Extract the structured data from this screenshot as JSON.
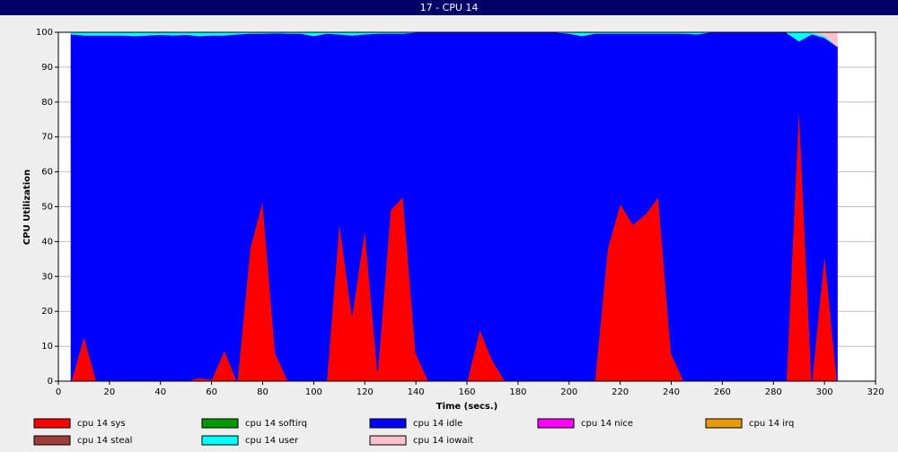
{
  "chart_data": {
    "type": "stacked_area",
    "title": "17 - CPU 14",
    "x_label": "Time (secs.)",
    "y_label": "CPU Utilization",
    "x": [
      5,
      10,
      15,
      20,
      25,
      30,
      35,
      40,
      45,
      50,
      55,
      60,
      65,
      70,
      75,
      80,
      85,
      90,
      95,
      100,
      105,
      110,
      115,
      120,
      125,
      130,
      135,
      140,
      145,
      150,
      155,
      160,
      165,
      170,
      175,
      180,
      185,
      190,
      195,
      200,
      205,
      210,
      215,
      220,
      225,
      230,
      235,
      240,
      245,
      250,
      255,
      260,
      265,
      270,
      275,
      280,
      285,
      290,
      295,
      300,
      305
    ],
    "series": [
      {
        "name": "cpu 14 sys",
        "color": "#ff0000",
        "values": [
          0,
          13,
          0,
          0,
          0,
          0,
          0,
          0,
          0,
          0,
          1,
          0.5,
          9,
          0,
          38,
          52,
          8,
          0,
          0,
          0,
          0,
          46,
          19,
          44,
          3,
          49,
          53,
          8,
          0,
          0,
          0,
          0,
          15,
          6,
          0,
          0,
          0,
          0,
          0,
          0,
          0,
          0,
          38,
          51,
          45,
          48,
          53,
          8,
          0,
          0,
          0,
          0,
          0,
          0,
          0,
          0,
          0,
          80,
          0,
          37,
          0
        ]
      },
      {
        "name": "cpu 14 softirq",
        "color": "#009900",
        "values": [
          0,
          0,
          0,
          0,
          0,
          0,
          0,
          0,
          0,
          0,
          0,
          0,
          0,
          0,
          0,
          0,
          0,
          0,
          0,
          0,
          0,
          0,
          0,
          0,
          0,
          0,
          0,
          0,
          0,
          0,
          0,
          0,
          0,
          0,
          0,
          0,
          0,
          0,
          0,
          0,
          0,
          0,
          0,
          0,
          0,
          0,
          0,
          0,
          0,
          0,
          0,
          0,
          0,
          0,
          0,
          0,
          0,
          0,
          0,
          0,
          0
        ]
      },
      {
        "name": "cpu 14 idle",
        "color": "#0000ff",
        "values": [
          99.5,
          86.2,
          99.2,
          99.2,
          99.2,
          99,
          99.2,
          99.4,
          99.2,
          99.4,
          98,
          98.7,
          90.2,
          99.5,
          61.7,
          47.7,
          91.8,
          99.7,
          99.7,
          99,
          99.7,
          53.5,
          80.2,
          55.5,
          96.7,
          50.7,
          46.7,
          92,
          100,
          100,
          100,
          100,
          85,
          94,
          100,
          100,
          100,
          100,
          100,
          99.7,
          99,
          99.7,
          61.7,
          48.7,
          54.7,
          51.7,
          46.7,
          91.7,
          99.7,
          99.5,
          100,
          100,
          100,
          100,
          100,
          100,
          100,
          17.5,
          99.5,
          61.5,
          96
        ]
      },
      {
        "name": "cpu 14 nice",
        "color": "#ff00ff",
        "values": [
          0,
          0,
          0,
          0,
          0,
          0,
          0,
          0,
          0,
          0,
          0,
          0,
          0,
          0,
          0,
          0,
          0,
          0,
          0,
          0,
          0,
          0,
          0,
          0,
          0,
          0,
          0,
          0,
          0,
          0,
          0,
          0,
          0,
          0,
          0,
          0,
          0,
          0,
          0,
          0,
          0,
          0,
          0,
          0,
          0,
          0,
          0,
          0,
          0,
          0,
          0,
          0,
          0,
          0,
          0,
          0,
          0,
          0,
          0,
          0,
          0
        ]
      },
      {
        "name": "cpu 14 irq",
        "color": "#e69900",
        "values": [
          0,
          0,
          0,
          0,
          0,
          0,
          0,
          0,
          0,
          0,
          0,
          0,
          0,
          0,
          0,
          0,
          0,
          0,
          0,
          0,
          0,
          0,
          0,
          0,
          0,
          0,
          0,
          0,
          0,
          0,
          0,
          0,
          0,
          0,
          0,
          0,
          0,
          0,
          0,
          0,
          0,
          0,
          0,
          0,
          0,
          0,
          0,
          0,
          0,
          0,
          0,
          0,
          0,
          0,
          0,
          0,
          0,
          0,
          0,
          0,
          0
        ]
      },
      {
        "name": "cpu 14 steal",
        "color": "#a03c3c",
        "values": [
          0,
          0,
          0,
          0,
          0,
          0,
          0,
          0,
          0,
          0,
          0,
          0,
          0,
          0,
          0,
          0,
          0,
          0,
          0,
          0,
          0,
          0,
          0,
          0,
          0,
          0,
          0,
          0,
          0,
          0,
          0,
          0,
          0,
          0,
          0,
          0,
          0,
          0,
          0,
          0,
          0,
          0,
          0,
          0,
          0,
          0,
          0,
          0,
          0,
          0,
          0,
          0,
          0,
          0,
          0,
          0,
          0,
          0,
          0,
          0,
          0
        ]
      },
      {
        "name": "cpu 14 user",
        "color": "#00ffff",
        "values": [
          0.5,
          0.8,
          0.8,
          0.8,
          0.8,
          1,
          0.8,
          0.6,
          0.8,
          0.6,
          1,
          0.8,
          0.8,
          0.5,
          0.3,
          0.3,
          0.2,
          0.3,
          0.3,
          1,
          0.3,
          0.5,
          0.8,
          0.5,
          0.3,
          0.3,
          0.3,
          0,
          0,
          0,
          0,
          0,
          0,
          0,
          0,
          0,
          0,
          0,
          0,
          0.3,
          1,
          0.3,
          0.3,
          0.3,
          0.3,
          0.3,
          0.3,
          0.3,
          0.3,
          0.5,
          0,
          0,
          0,
          0,
          0,
          0,
          0,
          2.5,
          0.5,
          0.5,
          0
        ]
      },
      {
        "name": "cpu 14 iowait",
        "color": "#ffc0cb",
        "values": [
          0,
          0,
          0,
          0,
          0,
          0,
          0,
          0,
          0,
          0,
          0,
          0,
          0,
          0,
          0,
          0,
          0,
          0,
          0,
          0,
          0,
          0,
          0,
          0,
          0,
          0,
          0,
          0,
          0,
          0,
          0,
          0,
          0,
          0,
          0,
          0,
          0,
          0,
          0,
          0,
          0,
          0,
          0,
          0,
          0,
          0,
          0,
          0,
          0,
          0,
          0,
          0,
          0,
          0,
          0,
          0,
          0,
          0,
          0,
          1,
          4
        ]
      }
    ],
    "xlim": [
      0,
      320
    ],
    "xticks": [
      0,
      20,
      40,
      60,
      80,
      100,
      120,
      140,
      160,
      180,
      200,
      220,
      240,
      260,
      280,
      300,
      320
    ],
    "ylim": [
      0,
      100
    ],
    "yticks": [
      0,
      10,
      20,
      30,
      40,
      50,
      60,
      70,
      80,
      90,
      100
    ],
    "grid": true
  }
}
